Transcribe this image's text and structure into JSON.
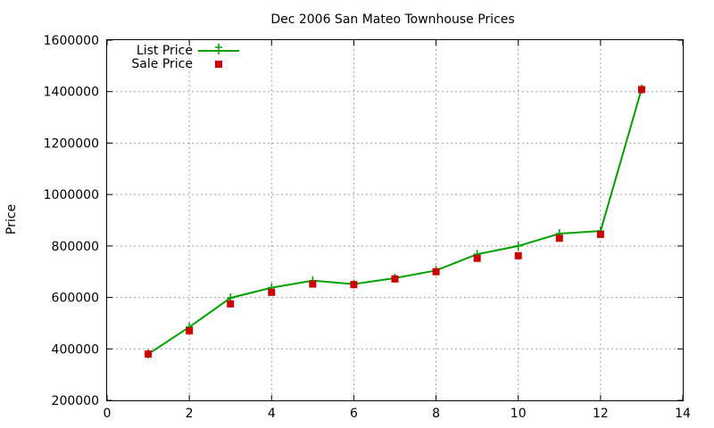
{
  "chart_data": {
    "type": "line",
    "title": "Dec 2006 San Mateo Townhouse Prices",
    "xlabel": "",
    "ylabel": "Price",
    "xlim": [
      0,
      14
    ],
    "ylim": [
      200000,
      1600000
    ],
    "xticks": [
      0,
      2,
      4,
      6,
      8,
      10,
      12,
      14
    ],
    "yticks": [
      200000,
      400000,
      600000,
      800000,
      1000000,
      1200000,
      1400000,
      1600000
    ],
    "grid": true,
    "legend_position": "top-left",
    "series": [
      {
        "name": "List Price",
        "style": "line-with-plus-markers",
        "color": "#00a000",
        "x": [
          1,
          2,
          3,
          4,
          5,
          6,
          7,
          8,
          9,
          10,
          11,
          12,
          13
        ],
        "y": [
          380000,
          485000,
          598000,
          638000,
          665000,
          652000,
          675000,
          705000,
          768000,
          800000,
          848000,
          858000,
          1410000
        ]
      },
      {
        "name": "Sale Price",
        "style": "square-markers",
        "color": "#cc0000",
        "x": [
          1,
          2,
          3,
          4,
          5,
          6,
          7,
          8,
          9,
          10,
          11,
          12,
          13
        ],
        "y": [
          380000,
          470000,
          575000,
          620000,
          652000,
          650000,
          672000,
          700000,
          752000,
          762000,
          830000,
          845000,
          1408000
        ]
      }
    ]
  }
}
